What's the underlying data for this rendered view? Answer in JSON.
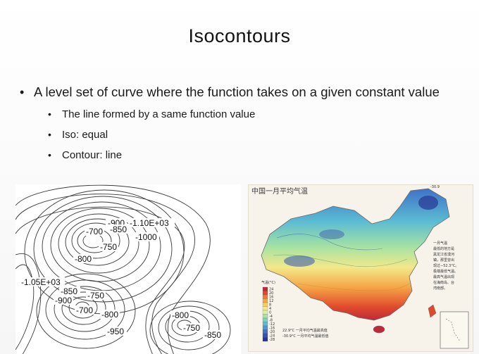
{
  "slide": {
    "title": "Isocontours",
    "bullets": [
      {
        "text": "A level set of curve where the function takes on a given constant value",
        "sub": [
          "The line formed by a same function value",
          "Iso: equal",
          "Contour: line"
        ]
      }
    ]
  },
  "contour_figure": {
    "labels": [
      "-900",
      "-1.10E+03",
      "-700",
      "-850",
      "-1000",
      "-750",
      "-800",
      "-1.05E+03",
      "-850",
      "-750",
      "-900",
      "-700",
      "-800",
      "-950",
      "-800",
      "-750",
      "-850"
    ]
  },
  "map_figure": {
    "title": "中国一月平均气温",
    "corner_value": "-30.9",
    "legend_title": "气温(°C)",
    "legend_ticks": [
      "24",
      "20",
      "16",
      "12",
      "8",
      "4",
      "0",
      "-4",
      "-8",
      "-12",
      "-16",
      "-20",
      "-24",
      "-28"
    ],
    "legend_colors": [
      "#c0283a",
      "#e04a2c",
      "#ee7a33",
      "#f5a546",
      "#f7cd5c",
      "#f3e88a",
      "#d9ef9a",
      "#a9e3a2",
      "#7fd1b8",
      "#5bbcd3",
      "#4d98d8",
      "#3f72c8",
      "#3553b0",
      "#2a3592"
    ],
    "note_lines": [
      "22.9°C 一月平均气温最高值",
      "-30.9°C 一月平均气温最低值"
    ],
    "side_text": [
      "一月气温",
      "最低的地方是",
      "黑龙江省漠河",
      "镇，那里曾出",
      "现过−52.3°C。",
      "极端最低气温。",
      "最高气温出现",
      "在海南岛、台",
      "湾南部。"
    ]
  }
}
